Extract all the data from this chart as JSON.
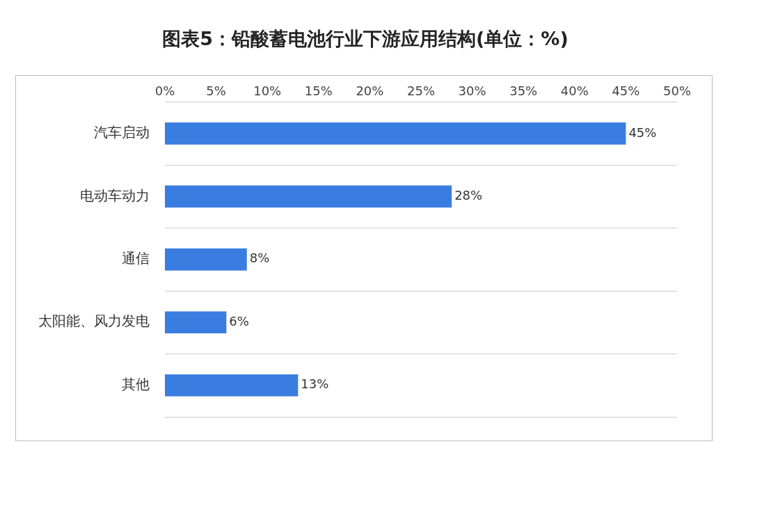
{
  "chart_data": {
    "type": "bar",
    "orientation": "horizontal",
    "title": "图表5：铅酸蓄电池行业下游应用结构(单位：%)",
    "categories": [
      "汽车启动",
      "电动车动力",
      "通信",
      "太阳能、风力发电",
      "其他"
    ],
    "values": [
      45,
      28,
      8,
      6,
      13
    ],
    "color": "#3a7de0",
    "value_labels": [
      "45%",
      "28%",
      "8%",
      "6%",
      "13%"
    ],
    "xlim": [
      0,
      50
    ],
    "xticks": [
      {
        "value": 0,
        "label": "0%"
      },
      {
        "value": 5,
        "label": "5%"
      },
      {
        "value": 10,
        "label": "10%"
      },
      {
        "value": 15,
        "label": "15%"
      },
      {
        "value": 20,
        "label": "20%"
      },
      {
        "value": 25,
        "label": "25%"
      },
      {
        "value": 30,
        "label": "30%"
      },
      {
        "value": 35,
        "label": "35%"
      },
      {
        "value": 40,
        "label": "40%"
      },
      {
        "value": 45,
        "label": "45%"
      },
      {
        "value": 50,
        "label": "50%"
      }
    ],
    "grid": "y",
    "legend": false
  }
}
